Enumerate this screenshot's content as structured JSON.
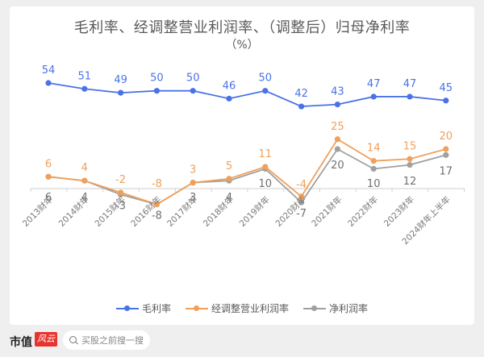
{
  "chart_data": {
    "type": "line",
    "title": "毛利率、经调整营业利润率、（调整后）归母净利率",
    "subtitle": "（%）",
    "xlabel": "",
    "ylabel": "",
    "categories": [
      "2013财年",
      "2014财年",
      "2015财年",
      "2016财年",
      "2017财年",
      "2018财年",
      "2019财年",
      "2020财年",
      "2021财年",
      "2022财年",
      "2023财年",
      "2024财年上半年"
    ],
    "series": [
      {
        "name": "毛利率",
        "color": "#4a72e8",
        "values": [
          54,
          51,
          49,
          50,
          50,
          46,
          50,
          42,
          43,
          47,
          47,
          45
        ],
        "label_position": "above"
      },
      {
        "name": "经调整营业利润率",
        "color": "#f0a05a",
        "values": [
          6,
          4,
          -2,
          -8,
          3,
          5,
          11,
          -4,
          25,
          14,
          15,
          20
        ],
        "label_position": "above"
      },
      {
        "name": "净利润率",
        "color": "#a0a0a0",
        "values": [
          6,
          4,
          -3,
          -8,
          3,
          4,
          10,
          -7,
          20,
          10,
          12,
          17
        ],
        "label_position": "below"
      }
    ],
    "grid": false,
    "legend_position": "bottom",
    "axis_baseline": 0
  },
  "legend": {
    "items": [
      {
        "label": "毛利率",
        "color": "#4a72e8"
      },
      {
        "label": "经调整营业利润率",
        "color": "#f0a05a"
      },
      {
        "label": "净利润率",
        "color": "#a0a0a0"
      }
    ]
  },
  "footer": {
    "brand_name": "市值",
    "brand_badge": "风云",
    "search_placeholder": "买股之前搜一搜"
  },
  "watermark": "市值风云"
}
